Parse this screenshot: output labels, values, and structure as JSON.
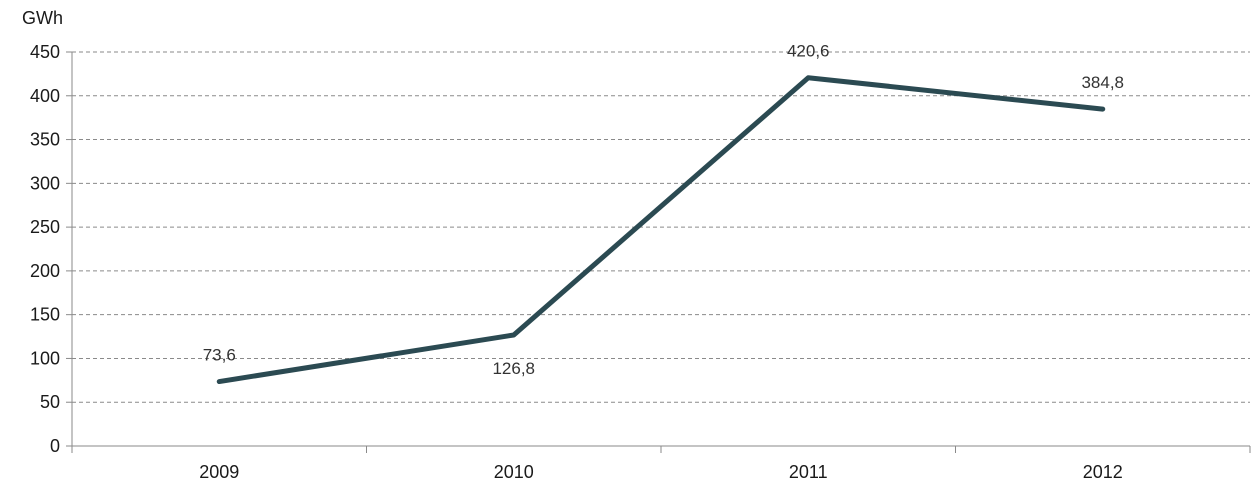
{
  "chart_data": {
    "type": "line",
    "title": "",
    "xlabel": "",
    "ylabel": "GWh",
    "categories": [
      "2009",
      "2010",
      "2011",
      "2012"
    ],
    "series": [
      {
        "values": [
          73.6,
          126.8,
          420.6,
          384.8
        ],
        "labels": [
          "73,6",
          "126,8",
          "420,6",
          "384,8"
        ],
        "label_position": [
          "above",
          "below",
          "above",
          "above"
        ]
      }
    ],
    "ylim": [
      0,
      450
    ],
    "yticks": [
      0,
      50,
      100,
      150,
      200,
      250,
      300,
      350,
      400,
      450
    ],
    "grid": true,
    "grid_style": "dashed",
    "legend": "none",
    "line_color": "#2b4a52"
  }
}
